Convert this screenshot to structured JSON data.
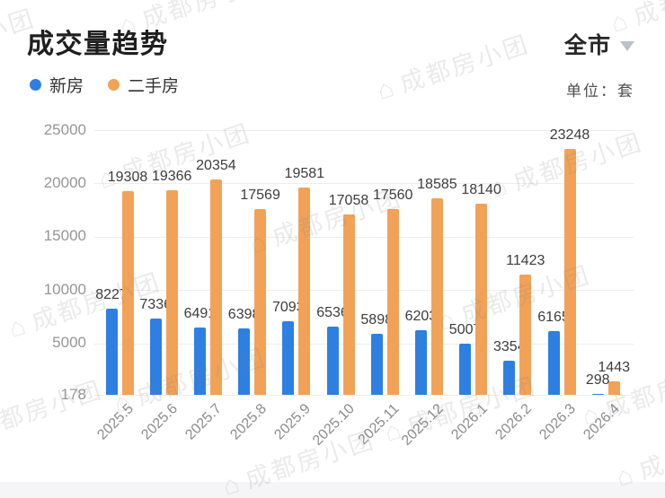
{
  "header": {
    "title": "成交量趋势",
    "region": "全市",
    "unit_label": "单位：套"
  },
  "legend": [
    {
      "label": "新房",
      "color": "#2E7FE2"
    },
    {
      "label": "二手房",
      "color": "#F2A257"
    }
  ],
  "watermark": {
    "text": "成都房小团"
  },
  "chart_data": {
    "type": "bar",
    "title": "成交量趋势",
    "unit": "套",
    "categories": [
      "2025.5",
      "2025.6",
      "2025.7",
      "2025.8",
      "2025.9",
      "2025.10",
      "2025.11",
      "2025.12",
      "2026.1",
      "2026.2",
      "2026.3",
      "2026.4"
    ],
    "series": [
      {
        "name": "新房",
        "color": "#2E7FE2",
        "values": [
          8227,
          7336,
          6491,
          6398,
          7093,
          6536,
          5898,
          6203,
          5007,
          3354,
          6165,
          298
        ]
      },
      {
        "name": "二手房",
        "color": "#F2A257",
        "values": [
          19308,
          19366,
          20354,
          17569,
          19581,
          17058,
          17560,
          18585,
          18140,
          11423,
          23248,
          1443
        ]
      }
    ],
    "yticks": [
      25000,
      20000,
      15000,
      10000,
      5000,
      178
    ],
    "ylim": [
      178,
      25000
    ],
    "grid": true,
    "legend_position": "top-left",
    "value_labels": true
  }
}
